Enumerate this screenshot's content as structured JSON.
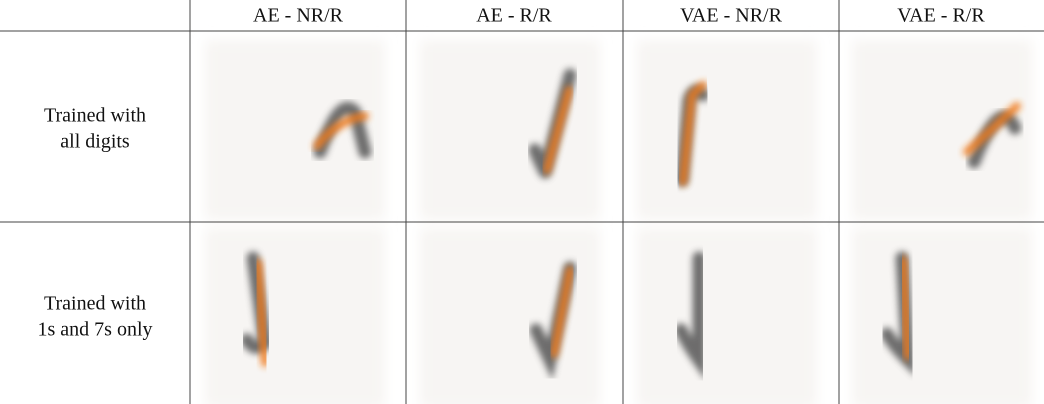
{
  "table": {
    "columns": [
      "AE - NR/R",
      "AE - R/R",
      "VAE - NR/R",
      "VAE - R/R"
    ],
    "rows": [
      {
        "label": [
          "Trained with",
          "all digits"
        ]
      },
      {
        "label": [
          "Trained with",
          "1s and 7s only"
        ]
      }
    ]
  }
}
